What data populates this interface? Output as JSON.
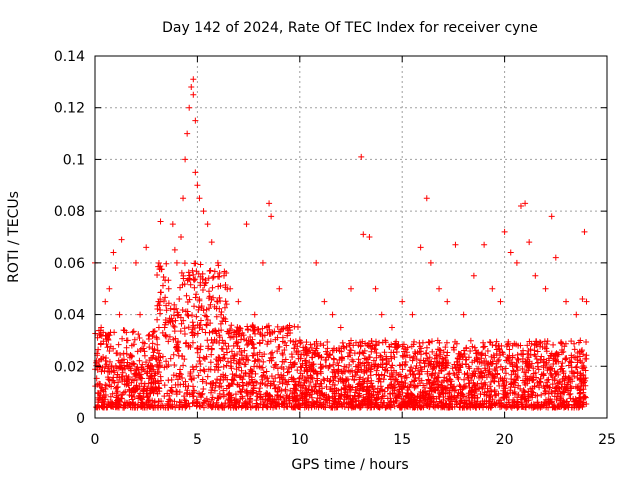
{
  "chart_data": {
    "type": "scatter",
    "title": "Day 142 of 2024, Rate Of TEC Index for receiver cyne",
    "xlabel": "GPS time / hours",
    "ylabel": "ROTI / TECUs",
    "xlim": [
      0,
      25
    ],
    "ylim": [
      0,
      0.14
    ],
    "xticks": [
      0,
      5,
      10,
      15,
      20,
      25
    ],
    "xtick_labels": [
      "0",
      "5",
      "10",
      "15",
      "20",
      "25"
    ],
    "yticks": [
      0,
      0.02,
      0.04,
      0.06,
      0.08,
      0.1,
      0.12,
      0.14
    ],
    "ytick_labels": [
      "0",
      "0.02",
      "0.04",
      "0.06",
      "0.08",
      "0.1",
      "0.12",
      "0.14"
    ],
    "grid": true,
    "marker": "+",
    "color": "#ff0000",
    "series": [
      {
        "name": "ROTI",
        "points": [
          [
            0.0,
            0.06
          ],
          [
            0.1,
            0.025
          ],
          [
            0.3,
            0.035
          ],
          [
            0.5,
            0.02
          ],
          [
            0.5,
            0.045
          ],
          [
            0.7,
            0.05
          ],
          [
            0.9,
            0.064
          ],
          [
            1.0,
            0.058
          ],
          [
            1.2,
            0.04
          ],
          [
            1.3,
            0.069
          ],
          [
            1.6,
            0.03
          ],
          [
            1.8,
            0.028
          ],
          [
            2.0,
            0.06
          ],
          [
            2.2,
            0.04
          ],
          [
            2.5,
            0.066
          ],
          [
            2.8,
            0.02
          ],
          [
            3.1,
            0.045
          ],
          [
            3.2,
            0.076
          ],
          [
            3.4,
            0.035
          ],
          [
            3.6,
            0.05
          ],
          [
            3.8,
            0.075
          ],
          [
            3.9,
            0.065
          ],
          [
            4.0,
            0.06
          ],
          [
            4.2,
            0.07
          ],
          [
            4.3,
            0.085
          ],
          [
            4.4,
            0.1
          ],
          [
            4.5,
            0.11
          ],
          [
            4.6,
            0.12
          ],
          [
            4.7,
            0.128
          ],
          [
            4.8,
            0.131
          ],
          [
            4.8,
            0.125
          ],
          [
            4.9,
            0.115
          ],
          [
            4.9,
            0.095
          ],
          [
            5.0,
            0.09
          ],
          [
            5.1,
            0.085
          ],
          [
            5.3,
            0.08
          ],
          [
            5.5,
            0.075
          ],
          [
            5.7,
            0.068
          ],
          [
            6.0,
            0.06
          ],
          [
            6.3,
            0.055
          ],
          [
            6.6,
            0.05
          ],
          [
            7.0,
            0.045
          ],
          [
            7.4,
            0.075
          ],
          [
            7.8,
            0.04
          ],
          [
            8.2,
            0.06
          ],
          [
            8.5,
            0.083
          ],
          [
            8.6,
            0.078
          ],
          [
            9.0,
            0.05
          ],
          [
            9.5,
            0.035
          ],
          [
            10.0,
            0.03
          ],
          [
            10.4,
            0.025
          ],
          [
            10.8,
            0.06
          ],
          [
            11.2,
            0.045
          ],
          [
            11.6,
            0.04
          ],
          [
            12.0,
            0.035
          ],
          [
            12.5,
            0.05
          ],
          [
            13.0,
            0.101
          ],
          [
            13.1,
            0.071
          ],
          [
            13.4,
            0.07
          ],
          [
            13.7,
            0.05
          ],
          [
            14.0,
            0.04
          ],
          [
            14.5,
            0.035
          ],
          [
            15.0,
            0.045
          ],
          [
            15.5,
            0.04
          ],
          [
            15.9,
            0.066
          ],
          [
            16.2,
            0.085
          ],
          [
            16.4,
            0.06
          ],
          [
            16.8,
            0.05
          ],
          [
            17.2,
            0.045
          ],
          [
            17.6,
            0.067
          ],
          [
            18.0,
            0.04
          ],
          [
            18.5,
            0.055
          ],
          [
            19.0,
            0.067
          ],
          [
            19.4,
            0.05
          ],
          [
            19.8,
            0.045
          ],
          [
            20.0,
            0.072
          ],
          [
            20.3,
            0.064
          ],
          [
            20.6,
            0.06
          ],
          [
            20.8,
            0.082
          ],
          [
            21.0,
            0.083
          ],
          [
            21.2,
            0.068
          ],
          [
            21.5,
            0.055
          ],
          [
            22.0,
            0.05
          ],
          [
            22.3,
            0.078
          ],
          [
            22.5,
            0.062
          ],
          [
            23.0,
            0.045
          ],
          [
            23.5,
            0.04
          ],
          [
            23.8,
            0.046
          ],
          [
            23.9,
            0.072
          ],
          [
            24.0,
            0.045
          ]
        ]
      }
    ],
    "background_band": {
      "description": "dense red band of points across the full time range",
      "segments": [
        {
          "x0": 0,
          "x1": 3.0,
          "lo": 0.004,
          "hi": 0.034
        },
        {
          "x0": 3.0,
          "x1": 6.5,
          "lo": 0.004,
          "hi": 0.06
        },
        {
          "x0": 6.5,
          "x1": 10.0,
          "lo": 0.004,
          "hi": 0.036
        },
        {
          "x0": 10.0,
          "x1": 24.0,
          "lo": 0.004,
          "hi": 0.03
        }
      ]
    }
  }
}
